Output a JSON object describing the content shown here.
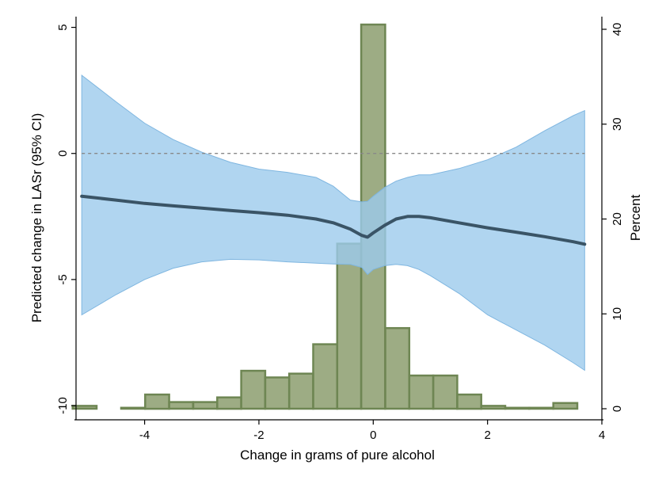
{
  "chart_data": {
    "type": "line",
    "xlabel": "Change in grams of pure alcohol",
    "ylabel_left": "Predicted change in LASr (95% CI)",
    "ylabel_right": "Percent",
    "xlim": [
      -5.2,
      4.0
    ],
    "ylim_left": [
      -10.5,
      5.3
    ],
    "ylim_right": [
      -1.0,
      41.0
    ],
    "x_ticks": [
      -4,
      -2,
      0,
      2,
      4
    ],
    "y_ticks_left": [
      -10,
      -5,
      0,
      5
    ],
    "y_ticks_right": [
      0,
      10,
      20,
      30,
      40
    ],
    "reference_line": {
      "y": 0,
      "style": "dashed"
    },
    "grid": false,
    "colors": {
      "ci_fill": "#9ccbec",
      "ci_edge": "#7fb6e0",
      "line": "#3a5466",
      "bar_fill": "#8c9e6e",
      "bar_edge": "#6e8653",
      "reference": "#888888"
    },
    "series": [
      {
        "kind": "line",
        "x": [
          -5.1,
          -4.5,
          -4.0,
          -3.5,
          -3.0,
          -2.5,
          -2.0,
          -1.5,
          -1.0,
          -0.7,
          -0.4,
          -0.2,
          -0.1,
          0.0,
          0.2,
          0.4,
          0.6,
          0.8,
          1.0,
          1.5,
          2.0,
          2.5,
          3.0,
          3.5,
          3.7
        ],
        "y": [
          -1.7,
          -1.85,
          -1.98,
          -2.08,
          -2.17,
          -2.26,
          -2.35,
          -2.45,
          -2.6,
          -2.75,
          -3.0,
          -3.25,
          -3.32,
          -3.15,
          -2.85,
          -2.6,
          -2.5,
          -2.5,
          -2.55,
          -2.75,
          -2.95,
          -3.12,
          -3.3,
          -3.5,
          -3.6
        ]
      },
      {
        "kind": "ci",
        "x": [
          -5.1,
          -4.5,
          -4.0,
          -3.5,
          -3.0,
          -2.5,
          -2.0,
          -1.5,
          -1.0,
          -0.7,
          -0.4,
          -0.2,
          -0.1,
          0.0,
          0.2,
          0.4,
          0.6,
          0.8,
          1.0,
          1.5,
          2.0,
          2.5,
          3.0,
          3.5,
          3.7
        ],
        "upper": [
          3.1,
          2.05,
          1.2,
          0.55,
          0.05,
          -0.35,
          -0.62,
          -0.75,
          -0.95,
          -1.3,
          -1.85,
          -1.92,
          -1.9,
          -1.7,
          -1.35,
          -1.1,
          -0.95,
          -0.85,
          -0.85,
          -0.6,
          -0.25,
          0.25,
          0.9,
          1.5,
          1.7
        ],
        "lower": [
          -6.4,
          -5.6,
          -5.0,
          -4.55,
          -4.3,
          -4.2,
          -4.22,
          -4.3,
          -4.35,
          -4.38,
          -4.4,
          -4.52,
          -4.8,
          -4.6,
          -4.45,
          -4.4,
          -4.45,
          -4.6,
          -4.85,
          -5.55,
          -6.4,
          -7.0,
          -7.6,
          -8.3,
          -8.6
        ]
      },
      {
        "kind": "histogram",
        "bin_width": 0.42,
        "bin_centers": [
          -5.05,
          -4.2,
          -3.78,
          -3.36,
          -2.94,
          -2.52,
          -2.1,
          -1.68,
          -1.26,
          -0.84,
          -0.42,
          0.0,
          0.42,
          0.84,
          1.26,
          1.68,
          2.1,
          2.52,
          2.94,
          3.36
        ],
        "percent": [
          0.3,
          0.1,
          1.5,
          0.7,
          0.7,
          1.2,
          4.0,
          3.3,
          3.7,
          6.8,
          17.4,
          40.5,
          8.5,
          3.5,
          3.5,
          1.5,
          0.3,
          0.1,
          0.1,
          0.6
        ]
      }
    ]
  }
}
